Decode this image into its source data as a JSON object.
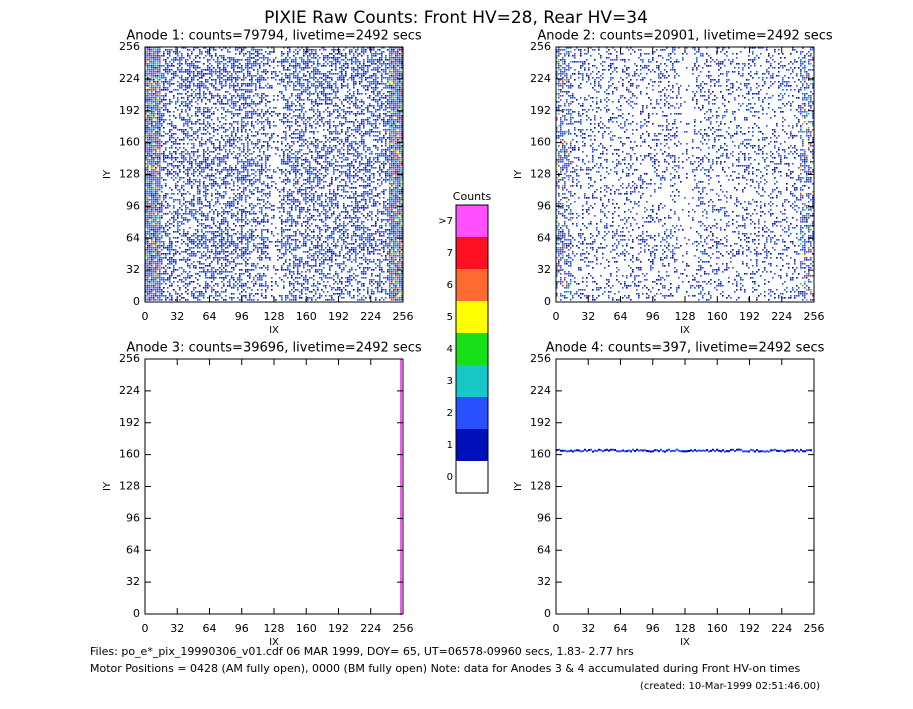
{
  "title": "PIXIE Raw Counts:  Front HV=28, Rear HV=34",
  "chart_data": [
    {
      "type": "heatmap",
      "title": "Anode 1: counts=79794, livetime=2492 secs",
      "xlabel": "IX",
      "ylabel": "IY",
      "xlim": [
        0,
        256
      ],
      "ylim": [
        0,
        256
      ],
      "xticks": [
        0,
        32,
        64,
        96,
        128,
        160,
        192,
        224,
        256
      ],
      "yticks": [
        0,
        32,
        64,
        96,
        128,
        160,
        192,
        224,
        256
      ]
    },
    {
      "type": "heatmap",
      "title": "Anode 2: counts=20901, livetime=2492 secs",
      "xlabel": "IX",
      "ylabel": "IY",
      "xlim": [
        0,
        256
      ],
      "ylim": [
        0,
        256
      ],
      "xticks": [
        0,
        32,
        64,
        96,
        128,
        160,
        192,
        224,
        256
      ],
      "yticks": [
        0,
        32,
        64,
        96,
        128,
        160,
        192,
        224,
        256
      ]
    },
    {
      "type": "heatmap",
      "title": "Anode 3: counts=39696, livetime=2492 secs",
      "xlabel": "IX",
      "ylabel": "IY",
      "xlim": [
        0,
        256
      ],
      "ylim": [
        0,
        256
      ],
      "xticks": [
        0,
        32,
        64,
        96,
        128,
        160,
        192,
        224,
        256
      ],
      "yticks": [
        0,
        32,
        64,
        96,
        128,
        160,
        192,
        224,
        256
      ]
    },
    {
      "type": "heatmap",
      "title": "Anode 4: counts=397, livetime=2492 secs",
      "xlabel": "IX",
      "ylabel": "IY",
      "xlim": [
        0,
        256
      ],
      "ylim": [
        0,
        256
      ],
      "xticks": [
        0,
        32,
        64,
        96,
        128,
        160,
        192,
        224,
        256
      ],
      "yticks": [
        0,
        32,
        64,
        96,
        128,
        160,
        192,
        224,
        256
      ]
    },
    {
      "type": "colorbar",
      "title": "Counts",
      "categories": [
        "0",
        "1",
        "2",
        "3",
        "4",
        "5",
        "6",
        "7",
        ">7"
      ],
      "colors": [
        "#ffffff",
        "#0010b8",
        "#2850ff",
        "#18c8c8",
        "#18e018",
        "#ffff00",
        "#ff6a30",
        "#ff1020",
        "#ff50ff"
      ]
    }
  ],
  "footer": {
    "files": "Files: po_e*_pix_19990306_v01.cdf    06 MAR 1999, DOY= 65, UT=06578-09960 secs,  1.83- 2.77 hrs",
    "motor": "Motor Positions = 0428 (AM fully open), 0000 (BM fully open)    Note: data for Anodes 3 & 4 accumulated during Front HV-on times",
    "created": "(created: 10-Mar-1999 02:51:46.00)"
  }
}
